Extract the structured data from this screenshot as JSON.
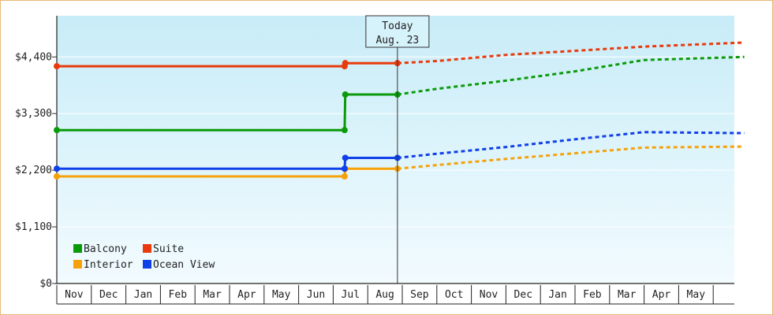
{
  "chart_data": {
    "type": "line",
    "title": "",
    "xlabel": "",
    "ylabel": "",
    "ylim": [
      0,
      5200
    ],
    "yticks": [
      0,
      1100,
      2200,
      3300,
      4400
    ],
    "ytick_labels": [
      "$0",
      "$1,100",
      "$2,200",
      "$3,300",
      "$4,400"
    ],
    "xtick_labels": [
      "Nov",
      "Dec",
      "Jan",
      "Feb",
      "Mar",
      "Apr",
      "May",
      "Jun",
      "Jul",
      "Aug",
      "Sep",
      "Oct",
      "Nov",
      "Dec",
      "Jan",
      "Feb",
      "Mar",
      "Apr",
      "May"
    ],
    "today": {
      "label_line1": "Today",
      "label_line2": "Aug. 23",
      "x": 9.86
    },
    "legend_position": "bottom-left",
    "series": [
      {
        "name": "Balcony",
        "color": "#0a9a0a",
        "history": [
          [
            0,
            2980
          ],
          [
            8.33,
            2980
          ],
          [
            8.35,
            3670
          ],
          [
            9.86,
            3670
          ]
        ],
        "forecast": [
          [
            9.86,
            3670
          ],
          [
            11,
            3780
          ],
          [
            13,
            3940
          ],
          [
            15,
            4120
          ],
          [
            17,
            4340
          ],
          [
            19.9,
            4400
          ]
        ]
      },
      {
        "name": "Suite",
        "color": "#e83a0c",
        "history": [
          [
            0,
            4220
          ],
          [
            8.33,
            4220
          ],
          [
            8.35,
            4280
          ],
          [
            9.86,
            4280
          ]
        ],
        "forecast": [
          [
            9.86,
            4280
          ],
          [
            11,
            4320
          ],
          [
            13,
            4440
          ],
          [
            15,
            4520
          ],
          [
            17,
            4600
          ],
          [
            19.9,
            4680
          ]
        ]
      },
      {
        "name": "Interior",
        "color": "#f5a20a",
        "history": [
          [
            0,
            2080
          ],
          [
            8.33,
            2080
          ],
          [
            8.35,
            2230
          ],
          [
            9.86,
            2230
          ]
        ],
        "forecast": [
          [
            9.86,
            2230
          ],
          [
            11,
            2300
          ],
          [
            13,
            2420
          ],
          [
            15,
            2530
          ],
          [
            17,
            2640
          ],
          [
            19.9,
            2660
          ]
        ]
      },
      {
        "name": "Ocean View",
        "color": "#1040e8",
        "history": [
          [
            0,
            2230
          ],
          [
            8.33,
            2230
          ],
          [
            8.35,
            2440
          ],
          [
            9.86,
            2440
          ]
        ],
        "forecast": [
          [
            9.86,
            2440
          ],
          [
            11,
            2520
          ],
          [
            13,
            2650
          ],
          [
            15,
            2800
          ],
          [
            17,
            2940
          ],
          [
            19.9,
            2920
          ]
        ]
      }
    ]
  }
}
